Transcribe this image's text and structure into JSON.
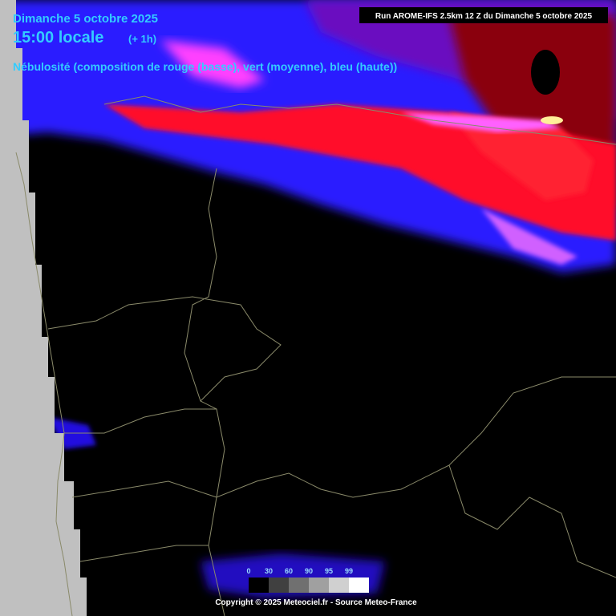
{
  "header": {
    "date": "Dimanche 5 octobre 2025",
    "time": "15:00 locale",
    "offset": "(+ 1h)",
    "subtitle": "Nébulosité (composition de rouge (basse), vert (moyenne), bleu (haute))"
  },
  "run_info": "Run AROME-IFS 2.5km 12 Z du Dimanche 5 octobre 2025",
  "legend": {
    "ticks": [
      "0",
      "30",
      "60",
      "90",
      "95",
      "99"
    ]
  },
  "copyright": "Copyright © 2025 Meteociel.fr - Source Meteo-France"
}
